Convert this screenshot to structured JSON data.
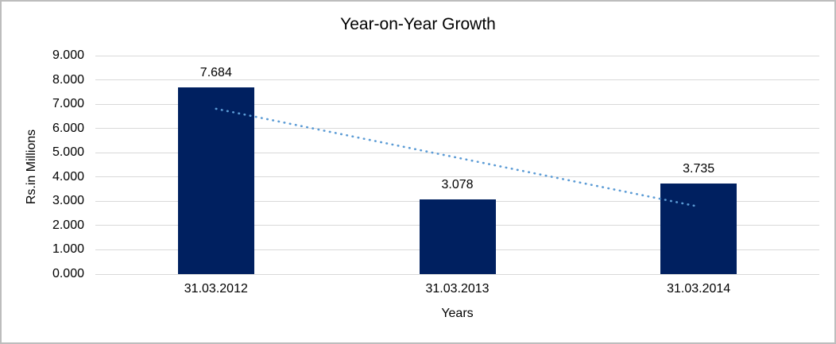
{
  "chart": {
    "title": "Year-on-Year Growth",
    "x_axis_title": "Years",
    "y_axis_title": "Rs.in Millions",
    "colors": {
      "bar_fill": "#002060",
      "trendline": "#5b9bd5",
      "gridline": "#d9d9d9",
      "text": "#000000",
      "frame_border": "#bdbdbd",
      "background": "#ffffff"
    }
  },
  "chart_data": {
    "type": "bar",
    "title": "Year-on-Year Growth",
    "xlabel": "Years",
    "ylabel": "Rs.in Millions",
    "categories": [
      "31.03.2012",
      "31.03.2013",
      "31.03.2014"
    ],
    "values": [
      7.684,
      3.078,
      3.735
    ],
    "data_labels": [
      "7.684",
      "3.078",
      "3.735"
    ],
    "ylim": [
      0,
      9
    ],
    "ytick_step": 1,
    "ytick_labels": [
      "0.000",
      "1.000",
      "2.000",
      "3.000",
      "4.000",
      "5.000",
      "6.000",
      "7.000",
      "8.000",
      "9.000"
    ],
    "grid": true,
    "legend": "none",
    "trendline": {
      "type": "linear",
      "style": "dotted",
      "start_category_index": 0,
      "end_category_index": 2,
      "start_value": 6.81,
      "end_value": 2.78
    }
  }
}
